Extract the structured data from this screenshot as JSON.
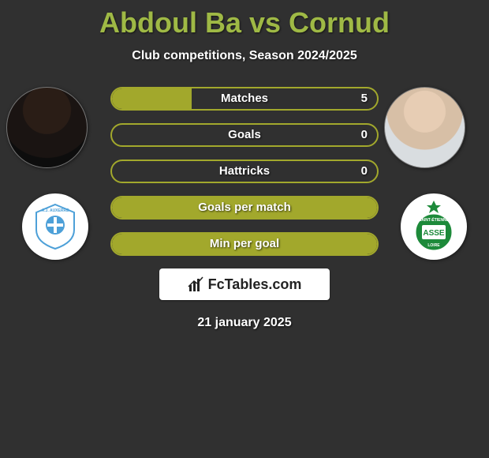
{
  "header": {
    "title": "Abdoul Ba vs Cornud",
    "title_color": "#9fb945",
    "subtitle": "Club competitions, Season 2024/2025"
  },
  "players": {
    "left": {
      "name": "Abdoul Ba",
      "club": "AJ Auxerre"
    },
    "right": {
      "name": "Cornud",
      "club": "Saint-Étienne"
    }
  },
  "clubs": {
    "left": {
      "label": "A.J. AUXERRE",
      "bg": "#ffffff",
      "accent": "#4da0d8"
    },
    "right": {
      "label": "ASSE",
      "bg": "#ffffff",
      "accent": "#1d8a3a"
    }
  },
  "stats": {
    "bar_color": "#a2a82c",
    "rows": [
      {
        "label": "Matches",
        "value": "5",
        "fill_pct": 30
      },
      {
        "label": "Goals",
        "value": "0",
        "fill_pct": 0
      },
      {
        "label": "Hattricks",
        "value": "0",
        "fill_pct": 0
      },
      {
        "label": "Goals per match",
        "value": "",
        "fill_pct": 100
      },
      {
        "label": "Min per goal",
        "value": "",
        "fill_pct": 100
      }
    ]
  },
  "brand": {
    "text": "FcTables.com"
  },
  "date": {
    "text": "21 january 2025"
  },
  "colors": {
    "page_bg": "#303030"
  }
}
